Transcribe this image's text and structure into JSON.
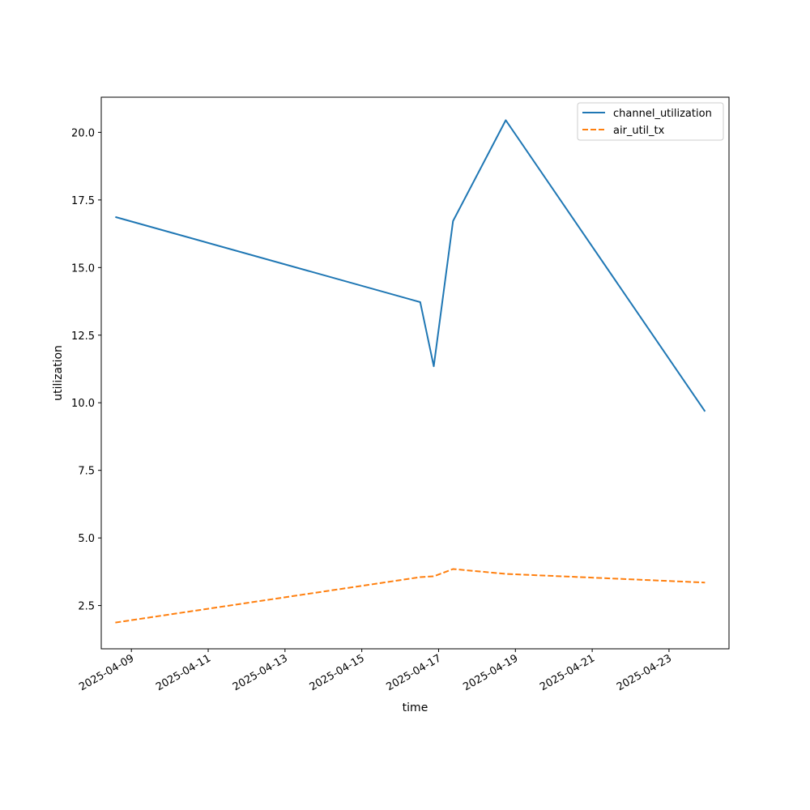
{
  "chart_data": {
    "type": "line",
    "xlabel": "time",
    "ylabel": "utilization",
    "x_is_date": true,
    "xlim": [
      "2025-04-08T05:10",
      "2025-04-24T13:30"
    ],
    "ylim": [
      0.9,
      21.3
    ],
    "x_ticks": [
      "2025-04-09",
      "2025-04-11",
      "2025-04-13",
      "2025-04-15",
      "2025-04-17",
      "2025-04-19",
      "2025-04-21",
      "2025-04-23"
    ],
    "y_ticks": [
      "2.5",
      "5.0",
      "7.5",
      "10.0",
      "12.5",
      "15.0",
      "17.5",
      "20.0"
    ],
    "grid": false,
    "legend_position": "top-right",
    "series": [
      {
        "name": "channel_utilization",
        "color": "#1f77b4",
        "dash": "solid",
        "points": [
          {
            "x": "2025-04-08T14:00",
            "y": 16.87
          },
          {
            "x": "2025-04-16T12:30",
            "y": 13.72
          },
          {
            "x": "2025-04-16T21:00",
            "y": 11.35
          },
          {
            "x": "2025-04-17T09:00",
            "y": 16.72
          },
          {
            "x": "2025-04-18T18:00",
            "y": 20.45
          },
          {
            "x": "2025-04-23T22:30",
            "y": 9.68
          }
        ]
      },
      {
        "name": "air_util_tx",
        "color": "#ff7f0e",
        "dash": "dashed",
        "points": [
          {
            "x": "2025-04-08T14:00",
            "y": 1.87
          },
          {
            "x": "2025-04-16T12:30",
            "y": 3.55
          },
          {
            "x": "2025-04-16T21:00",
            "y": 3.58
          },
          {
            "x": "2025-04-17T09:00",
            "y": 3.85
          },
          {
            "x": "2025-04-18T18:00",
            "y": 3.67
          },
          {
            "x": "2025-04-23T22:30",
            "y": 3.35
          }
        ]
      }
    ]
  }
}
